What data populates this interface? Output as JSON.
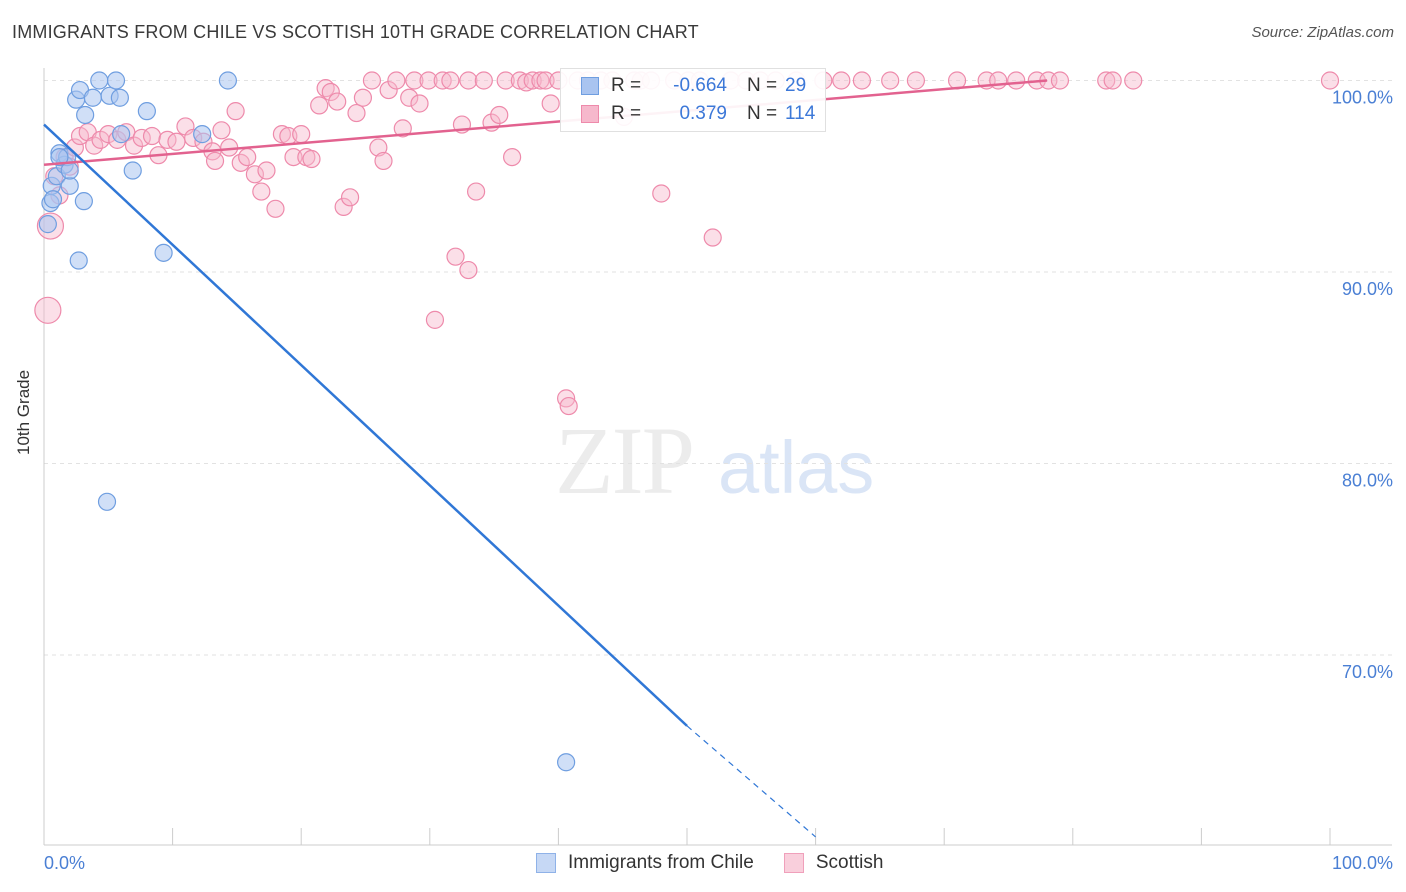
{
  "title": "IMMIGRANTS FROM CHILE VS SCOTTISH 10TH GRADE CORRELATION CHART",
  "source": "Source: ZipAtlas.com",
  "watermark": {
    "zip": "ZIP",
    "atlas": "atlas"
  },
  "legend": {
    "r_label": "R =",
    "n_label": "N =",
    "rows": [
      {
        "r": "-0.664",
        "n": "29"
      },
      {
        "r": "0.379",
        "n": "114"
      }
    ]
  },
  "bottom_legend": {
    "chile": "Immigrants from Chile",
    "scottish": "Scottish"
  },
  "colors": {
    "blue_fill": "#a9c4f0",
    "blue_stroke": "#6f9ee0",
    "blue_line": "#3077d6",
    "pink_fill": "#f6b8cc",
    "pink_stroke": "#ee8aab",
    "pink_line": "#e2628f",
    "axis_text": "#4a7fd4",
    "grid": "#e2e2e2"
  },
  "chart_data": {
    "type": "scatter",
    "title": "IMMIGRANTS FROM CHILE VS SCOTTISH 10TH GRADE CORRELATION CHART",
    "xlabel": "",
    "ylabel": "10th Grade",
    "xlim": [
      0,
      100
    ],
    "ylim": [
      60.5,
      101.5
    ],
    "x_tick_labels": [
      "0.0%",
      "100.0%"
    ],
    "y_ticks": [
      100,
      90,
      80,
      70
    ],
    "y_tick_labels": [
      "100.0%",
      "90.0%",
      "80.0%",
      "70.0%"
    ],
    "grid": true,
    "series": [
      {
        "name": "Immigrants from Chile",
        "R": -0.664,
        "N": 29,
        "points": [
          [
            0.3,
            92.5
          ],
          [
            0.5,
            93.6
          ],
          [
            0.6,
            94.5
          ],
          [
            0.7,
            93.8
          ],
          [
            1.0,
            95.0
          ],
          [
            1.2,
            96.2
          ],
          [
            1.6,
            95.6
          ],
          [
            1.8,
            96.0
          ],
          [
            2.0,
            94.5
          ],
          [
            2.0,
            95.3
          ],
          [
            2.5,
            99.0
          ],
          [
            2.8,
            99.5
          ],
          [
            3.2,
            98.2
          ],
          [
            3.8,
            99.1
          ],
          [
            4.3,
            100.0
          ],
          [
            5.1,
            99.2
          ],
          [
            5.6,
            100.0
          ],
          [
            5.9,
            99.1
          ],
          [
            6.0,
            97.2
          ],
          [
            2.7,
            90.6
          ],
          [
            3.1,
            93.7
          ],
          [
            6.9,
            95.3
          ],
          [
            8.0,
            98.4
          ],
          [
            9.3,
            91.0
          ],
          [
            12.3,
            97.2
          ],
          [
            14.3,
            100.0
          ],
          [
            4.9,
            78.0
          ],
          [
            40.6,
            64.4
          ],
          [
            1.2,
            96.0
          ]
        ],
        "trend": {
          "x0": 0,
          "y0": 97.7,
          "x1": 50,
          "y1": 66.3,
          "dash_to_x": 60,
          "dash_to_y": 60.5
        }
      },
      {
        "name": "Scottish",
        "R": 0.379,
        "N": 114,
        "points": [
          [
            0.3,
            88.0
          ],
          [
            0.5,
            92.4
          ],
          [
            0.8,
            95.0
          ],
          [
            1.2,
            94.0
          ],
          [
            1.6,
            96.0
          ],
          [
            2.0,
            95.5
          ],
          [
            2.4,
            96.5
          ],
          [
            2.8,
            97.1
          ],
          [
            3.4,
            97.3
          ],
          [
            3.9,
            96.6
          ],
          [
            4.4,
            96.9
          ],
          [
            5.0,
            97.2
          ],
          [
            5.7,
            96.9
          ],
          [
            6.4,
            97.3
          ],
          [
            7.0,
            96.6
          ],
          [
            7.6,
            97.0
          ],
          [
            8.4,
            97.1
          ],
          [
            8.9,
            96.1
          ],
          [
            9.6,
            96.9
          ],
          [
            10.3,
            96.8
          ],
          [
            11.0,
            97.6
          ],
          [
            11.6,
            97.0
          ],
          [
            12.4,
            96.8
          ],
          [
            13.1,
            96.3
          ],
          [
            13.3,
            95.8
          ],
          [
            13.8,
            97.4
          ],
          [
            14.4,
            96.5
          ],
          [
            14.9,
            98.4
          ],
          [
            15.3,
            95.7
          ],
          [
            15.8,
            96.0
          ],
          [
            16.4,
            95.1
          ],
          [
            16.9,
            94.2
          ],
          [
            17.3,
            95.3
          ],
          [
            18.0,
            93.3
          ],
          [
            18.5,
            97.2
          ],
          [
            19.0,
            97.1
          ],
          [
            19.4,
            96.0
          ],
          [
            20.0,
            97.2
          ],
          [
            20.4,
            96.0
          ],
          [
            20.8,
            95.9
          ],
          [
            21.4,
            98.7
          ],
          [
            21.9,
            99.6
          ],
          [
            22.3,
            99.4
          ],
          [
            22.8,
            98.9
          ],
          [
            23.3,
            93.4
          ],
          [
            23.8,
            93.9
          ],
          [
            24.3,
            98.3
          ],
          [
            24.8,
            99.1
          ],
          [
            25.5,
            100.0
          ],
          [
            26.0,
            96.5
          ],
          [
            26.4,
            95.8
          ],
          [
            26.8,
            99.5
          ],
          [
            27.4,
            100.0
          ],
          [
            27.9,
            97.5
          ],
          [
            28.4,
            99.1
          ],
          [
            28.8,
            100.0
          ],
          [
            29.2,
            98.8
          ],
          [
            29.9,
            100.0
          ],
          [
            30.4,
            87.5
          ],
          [
            31.0,
            100.0
          ],
          [
            31.6,
            100.0
          ],
          [
            32.0,
            90.8
          ],
          [
            32.5,
            97.7
          ],
          [
            33.0,
            100.0
          ],
          [
            33.0,
            90.1
          ],
          [
            33.6,
            94.2
          ],
          [
            34.2,
            100.0
          ],
          [
            34.8,
            97.8
          ],
          [
            35.4,
            98.2
          ],
          [
            35.9,
            100.0
          ],
          [
            36.4,
            96.0
          ],
          [
            37.0,
            100.0
          ],
          [
            37.5,
            99.9
          ],
          [
            38.0,
            100.0
          ],
          [
            38.6,
            100.0
          ],
          [
            39.0,
            100.0
          ],
          [
            39.4,
            98.8
          ],
          [
            40.0,
            100.0
          ],
          [
            40.6,
            83.4
          ],
          [
            40.8,
            83.0
          ],
          [
            41.5,
            100.0
          ],
          [
            42.3,
            100.0
          ],
          [
            43.3,
            100.0
          ],
          [
            44.2,
            100.0
          ],
          [
            45.1,
            98.1
          ],
          [
            45.9,
            100.0
          ],
          [
            46.4,
            100.0
          ],
          [
            47.2,
            100.0
          ],
          [
            48.0,
            94.1
          ],
          [
            49.0,
            100.0
          ],
          [
            50.1,
            100.0
          ],
          [
            51.0,
            100.0
          ],
          [
            52.0,
            91.8
          ],
          [
            53.4,
            100.0
          ],
          [
            54.6,
            100.0
          ],
          [
            55.7,
            100.0
          ],
          [
            56.9,
            100.0
          ],
          [
            58.5,
            100.0
          ],
          [
            60.6,
            100.0
          ],
          [
            62.0,
            100.0
          ],
          [
            63.6,
            100.0
          ],
          [
            65.8,
            100.0
          ],
          [
            67.8,
            100.0
          ],
          [
            71.0,
            100.0
          ],
          [
            73.3,
            100.0
          ],
          [
            74.2,
            100.0
          ],
          [
            75.6,
            100.0
          ],
          [
            77.2,
            100.0
          ],
          [
            78.1,
            100.0
          ],
          [
            79.0,
            100.0
          ],
          [
            82.6,
            100.0
          ],
          [
            83.1,
            100.0
          ],
          [
            84.7,
            100.0
          ],
          [
            100.0,
            100.0
          ]
        ],
        "trend": {
          "x0": 0,
          "y0": 95.6,
          "x1": 78,
          "y1": 100.0
        }
      }
    ]
  }
}
